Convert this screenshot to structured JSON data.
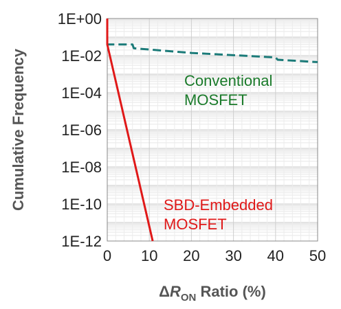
{
  "chart_data": {
    "type": "line",
    "xlabel": {
      "prefix": "Δ",
      "var": "R",
      "sub": "ON",
      "suffix": " Ratio (%)"
    },
    "ylabel": "Cumulative Frequency",
    "xlim": [
      0,
      50
    ],
    "ylim_log10": [
      -12,
      0
    ],
    "log_y": true,
    "grid": true,
    "x_ticks": [
      0,
      10,
      20,
      30,
      40,
      50
    ],
    "x_tick_labels": [
      "0",
      "10",
      "20",
      "30",
      "40",
      "50"
    ],
    "y_ticks_log10": [
      0,
      -2,
      -4,
      -6,
      -8,
      -10,
      -12
    ],
    "y_tick_labels": [
      "1E+00",
      "1E-02",
      "1E-04",
      "1E-06",
      "1E-08",
      "1E-10",
      "1E-12"
    ],
    "series": [
      {
        "label": [
          "Conventional",
          "MOSFET"
        ],
        "color": "#1a7a78",
        "label_color": "#1a7a2a",
        "style": "dashed",
        "points": [
          [
            0,
            1.0
          ],
          [
            0,
            0.04
          ],
          [
            6,
            0.04
          ],
          [
            6.3,
            0.025
          ],
          [
            20,
            0.014
          ],
          [
            40,
            0.008
          ],
          [
            40.5,
            0.006
          ],
          [
            50,
            0.0045
          ]
        ]
      },
      {
        "label": [
          "SBD-Embedded",
          "MOSFET"
        ],
        "color": "#e01818",
        "label_color": "#e01818",
        "style": "solid",
        "points": [
          [
            0,
            1.0
          ],
          [
            0,
            0.04
          ],
          [
            10.8,
            1e-12
          ]
        ]
      }
    ]
  }
}
